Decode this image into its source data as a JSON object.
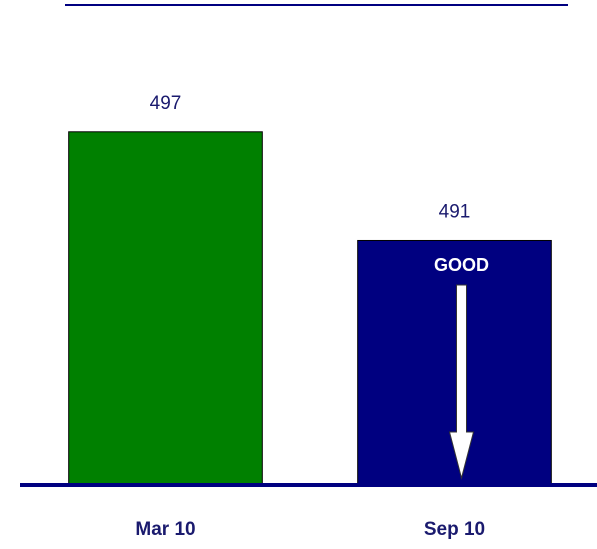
{
  "chart_data": {
    "type": "bar",
    "categories": [
      "Mar 10",
      "Sep 10"
    ],
    "values": [
      497,
      491
    ],
    "colors": [
      "#008000",
      "#000080"
    ],
    "ylim": [
      477.5,
      504
    ],
    "annotation": "GOOD"
  }
}
